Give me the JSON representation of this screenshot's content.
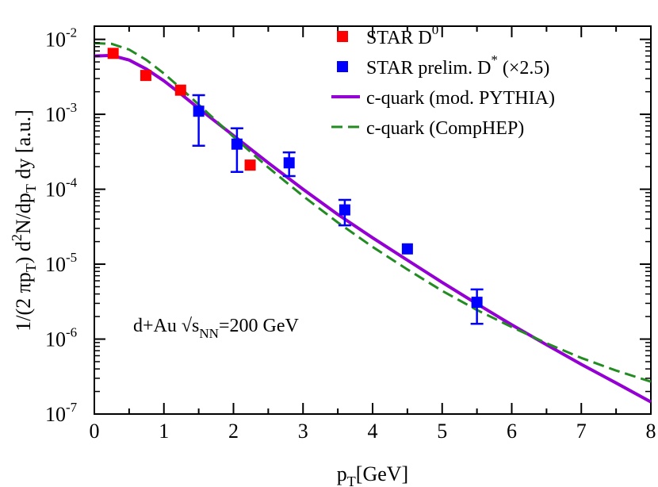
{
  "chart_data": {
    "type": "scatter",
    "xlim": [
      0,
      8
    ],
    "ylim": [
      1e-07,
      0.015
    ],
    "yscale": "log",
    "xticks": [
      0,
      1,
      2,
      3,
      4,
      5,
      6,
      7,
      8
    ],
    "xtick_labels": [
      "0",
      "1",
      "2",
      "3",
      "4",
      "5",
      "6",
      "7",
      "8"
    ],
    "yticks": [
      {
        "value": 1e-07,
        "mant": "10",
        "exp": "-7"
      },
      {
        "value": 1e-06,
        "mant": "10",
        "exp": "-6"
      },
      {
        "value": 1e-05,
        "mant": "10",
        "exp": "-5"
      },
      {
        "value": 0.0001,
        "mant": "10",
        "exp": "-4"
      },
      {
        "value": 0.001,
        "mant": "10",
        "exp": "-3"
      },
      {
        "value": 0.01,
        "mant": "10",
        "exp": "-2"
      }
    ],
    "xlabel": {
      "main": "p",
      "sub": "T",
      "rest": "[GeV]"
    },
    "ylabel": {
      "segments": [
        {
          "t": "1/(2 πp",
          "s": "n"
        },
        {
          "t": "T",
          "s": "sub"
        },
        {
          "t": ") d",
          "s": "n"
        },
        {
          "t": "2",
          "s": "sup"
        },
        {
          "t": "N/dp",
          "s": "n"
        },
        {
          "t": "T",
          "s": "sub"
        },
        {
          "t": " dy  [a.u.]",
          "s": "n"
        }
      ]
    },
    "annotation": {
      "pre": "d+Au ",
      "sqrt": "√",
      "s": "s",
      "sub": "NN",
      "post": "=200 GeV"
    },
    "grid": false,
    "legend_position": "top-right",
    "series": [
      {
        "name": "STAR D",
        "name_sup": "0",
        "kind": "points",
        "color": "#ff0000",
        "points": [
          {
            "x": 0.27,
            "y": 0.0065
          },
          {
            "x": 0.74,
            "y": 0.0033
          },
          {
            "x": 1.24,
            "y": 0.0021
          },
          {
            "x": 2.24,
            "y": 0.00021
          }
        ]
      },
      {
        "name": "STAR prelim. D",
        "name_sup": "*",
        "name_after": "  (×2.5)",
        "kind": "points",
        "color": "#0000ff",
        "points": [
          {
            "x": 1.5,
            "y": 0.0011,
            "ylo": 0.00038,
            "yhi": 0.0018
          },
          {
            "x": 2.05,
            "y": 0.0004,
            "ylo": 0.00017,
            "yhi": 0.00065
          },
          {
            "x": 2.8,
            "y": 0.000225,
            "ylo": 0.00015,
            "yhi": 0.00031
          },
          {
            "x": 3.6,
            "y": 5.3e-05,
            "ylo": 3.3e-05,
            "yhi": 7.2e-05
          },
          {
            "x": 4.5,
            "y": 1.6e-05
          },
          {
            "x": 5.5,
            "y": 3.1e-06,
            "ylo": 1.6e-06,
            "yhi": 4.6e-06
          }
        ]
      },
      {
        "name": "c-quark (mod. PYTHIA)",
        "kind": "line",
        "style": "solid",
        "color": "#9400d3",
        "x": [
          0,
          0.25,
          0.5,
          0.75,
          1.0,
          1.25,
          1.5,
          2.0,
          2.5,
          3.0,
          3.5,
          4.0,
          4.5,
          5.0,
          5.5,
          6.0,
          6.5,
          7.0,
          7.5,
          8.0
        ],
        "y": [
          0.006,
          0.0061,
          0.0053,
          0.004,
          0.0028,
          0.00185,
          0.0012,
          0.00052,
          0.000225,
          0.0001,
          4.6e-05,
          2.25e-05,
          1.13e-05,
          5.7e-06,
          2.95e-06,
          1.55e-06,
          8.4e-07,
          4.6e-07,
          2.6e-07,
          1.45e-07
        ]
      },
      {
        "name": "c-quark (CompHEP)",
        "kind": "line",
        "style": "dashed",
        "color": "#228b22",
        "x": [
          0,
          0.25,
          0.5,
          0.75,
          1.0,
          1.25,
          1.5,
          2.0,
          2.5,
          3.0,
          3.5,
          4.0,
          4.5,
          5.0,
          5.5,
          6.0,
          6.5,
          7.0,
          7.5,
          8.0
        ],
        "y": [
          0.0089,
          0.0087,
          0.0073,
          0.0053,
          0.0035,
          0.0022,
          0.00135,
          0.0005,
          0.000195,
          8.1e-05,
          3.6e-05,
          1.7e-05,
          8.5e-06,
          4.4e-06,
          2.45e-06,
          1.45e-06,
          8.8e-07,
          5.6e-07,
          3.8e-07,
          2.7e-07
        ]
      }
    ]
  }
}
